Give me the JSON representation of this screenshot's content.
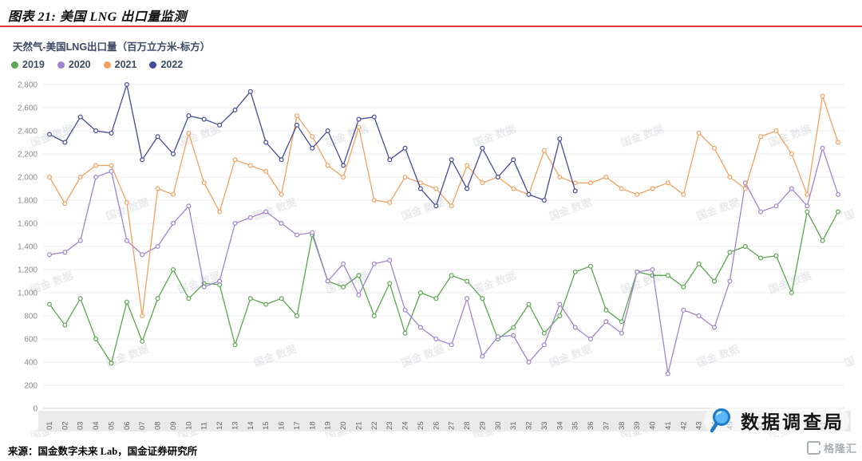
{
  "header": {
    "title": "图表 21: 美国 LNG 出口量监测"
  },
  "watermark": {
    "text": "国金 数据"
  },
  "overlay": {
    "brand_text": "数据调查局",
    "corner_logo_text": "格隆汇"
  },
  "footer": {
    "source": "来源：国金数字未来 Lab，国金证券研究所"
  },
  "chart_data": {
    "type": "line",
    "title": "天然气-美国LNG出口量（百万立方米-标方）",
    "xlabel": "",
    "ylabel": "",
    "ylim": [
      0,
      2800
    ],
    "ytick_step": 200,
    "grid": true,
    "legend_position": "top-left",
    "marker": "circle",
    "x_labels": [
      "01",
      "02",
      "03",
      "04",
      "05",
      "06",
      "07",
      "08",
      "09",
      "10",
      "11",
      "12",
      "13",
      "14",
      "15",
      "16",
      "17",
      "18",
      "19",
      "20",
      "21",
      "22",
      "23",
      "24",
      "25",
      "26",
      "27",
      "28",
      "29",
      "30",
      "31",
      "32",
      "33",
      "34",
      "35",
      "36",
      "37",
      "38",
      "39",
      "40",
      "41",
      "42",
      "43",
      "44",
      "45",
      "46",
      "47",
      "48",
      "49",
      "50",
      "51",
      "52"
    ],
    "series": [
      {
        "name": "2019",
        "color": "#5ba64f",
        "values": [
          900,
          720,
          950,
          600,
          390,
          920,
          580,
          950,
          1200,
          950,
          1080,
          1070,
          550,
          950,
          900,
          950,
          800,
          1500,
          1100,
          1050,
          1150,
          800,
          1080,
          650,
          1000,
          950,
          1150,
          1100,
          950,
          600,
          700,
          900,
          650,
          800,
          1180,
          1230,
          850,
          750,
          1180,
          1150,
          1150,
          1050,
          1250,
          1100,
          1350,
          1400,
          1300,
          1320,
          1000,
          1700,
          1450,
          1700
        ]
      },
      {
        "name": "2020",
        "color": "#a183cf",
        "values": [
          1330,
          1350,
          1450,
          2000,
          2050,
          1450,
          1330,
          1400,
          1600,
          1750,
          1050,
          1100,
          1600,
          1650,
          1700,
          1600,
          1500,
          1520,
          1100,
          1250,
          980,
          1250,
          1280,
          850,
          700,
          600,
          550,
          950,
          450,
          620,
          630,
          400,
          550,
          900,
          700,
          600,
          750,
          650,
          1180,
          1200,
          300,
          850,
          800,
          700,
          1100,
          1950,
          1700,
          1750,
          1900,
          1750,
          2250,
          1850
        ]
      },
      {
        "name": "2021",
        "color": "#f0a15f",
        "values": [
          2000,
          1770,
          2000,
          2100,
          2100,
          1780,
          800,
          1900,
          1850,
          2380,
          1950,
          1700,
          2150,
          2100,
          2050,
          1850,
          2530,
          2350,
          2100,
          2000,
          2430,
          1800,
          1780,
          2000,
          1950,
          1900,
          1750,
          2100,
          1950,
          2000,
          1900,
          1850,
          2230,
          2000,
          1950,
          1950,
          2000,
          1900,
          1850,
          1900,
          1950,
          1850,
          2380,
          2250,
          2000,
          1900,
          2350,
          2400,
          2200,
          1850,
          2700,
          2300
        ]
      },
      {
        "name": "2022",
        "color": "#434b9b",
        "values": [
          2370,
          2300,
          2520,
          2400,
          2380,
          2800,
          2150,
          2350,
          2200,
          2530,
          2500,
          2450,
          2580,
          2740,
          2300,
          2150,
          2450,
          2250,
          2400,
          2100,
          2500,
          2520,
          2150,
          2250,
          1900,
          1750,
          2150,
          1900,
          2250,
          2000,
          2150,
          1850,
          1800,
          2330,
          1880,
          null,
          null,
          null,
          null,
          null,
          null,
          null,
          null,
          null,
          null,
          null,
          null,
          null,
          null,
          null,
          null,
          null
        ]
      }
    ]
  }
}
